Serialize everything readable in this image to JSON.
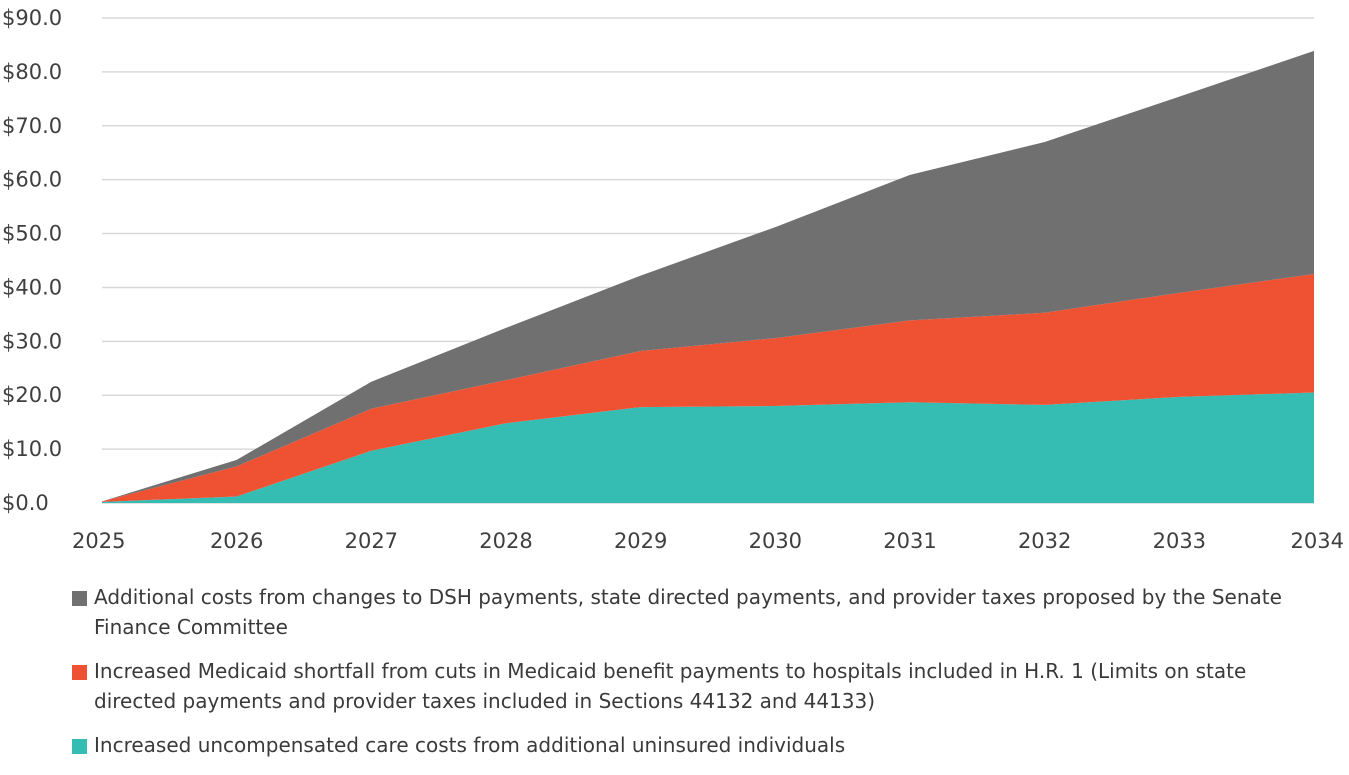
{
  "chart_data": {
    "type": "area",
    "stacked": true,
    "title": "",
    "xlabel": "",
    "ylabel": "",
    "x": [
      2025,
      2026,
      2027,
      2028,
      2029,
      2030,
      2031,
      2032,
      2033,
      2034
    ],
    "x_tick_labels": [
      "2025",
      "2026",
      "2027",
      "2028",
      "2029",
      "2030",
      "2031",
      "2032",
      "2033",
      "2034"
    ],
    "ylim": [
      0,
      90
    ],
    "y_ticks": [
      0,
      10,
      20,
      30,
      40,
      50,
      60,
      70,
      80,
      90
    ],
    "y_tick_labels": [
      "$0.0",
      "$10.0",
      "$20.0",
      "$30.0",
      "$40.0",
      "$50.0",
      "$60.0",
      "$70.0",
      "$80.0",
      "$90.0"
    ],
    "grid": "horizontal",
    "legend_position": "bottom",
    "series": [
      {
        "name": "Increased uncompensated care costs from additional uninsured individuals",
        "color": "#35bdb3",
        "values": [
          0.2,
          1.2,
          9.7,
          14.8,
          17.8,
          18.0,
          18.7,
          18.2,
          19.7,
          20.5
        ]
      },
      {
        "name": "Increased Medicaid shortfall from cuts in Medicaid benefit payments to hospitals included in H.R. 1 (Limits on state directed payments and provider taxes included in Sections 44132 and 44133)",
        "color": "#ee5233",
        "values": [
          0.1,
          5.6,
          7.8,
          8.0,
          10.4,
          12.6,
          15.2,
          17.1,
          19.3,
          22.0
        ]
      },
      {
        "name": "Additional costs from changes to DSH payments, state directed payments, and provider taxes proposed by the Senate Finance Committee",
        "color": "#707071",
        "values": [
          0.0,
          1.2,
          5.0,
          9.7,
          14.0,
          20.6,
          27.0,
          31.7,
          36.4,
          41.4
        ]
      }
    ]
  },
  "legend": {
    "items": [
      {
        "label": "Additional costs from changes to DSH payments, state directed payments, and provider taxes proposed by the Senate Finance Committee",
        "color": "#707071"
      },
      {
        "label": "Increased Medicaid shortfall from cuts in Medicaid benefit payments to hospitals included in H.R. 1 (Limits on state directed payments and provider taxes included in Sections 44132 and 44133)",
        "color": "#ee5233"
      },
      {
        "label": "Increased uncompensated care costs from additional uninsured individuals",
        "color": "#35bdb3"
      }
    ]
  },
  "colors": {
    "grid": "#d9d9d9",
    "tick_text": "#3f3f3f"
  }
}
